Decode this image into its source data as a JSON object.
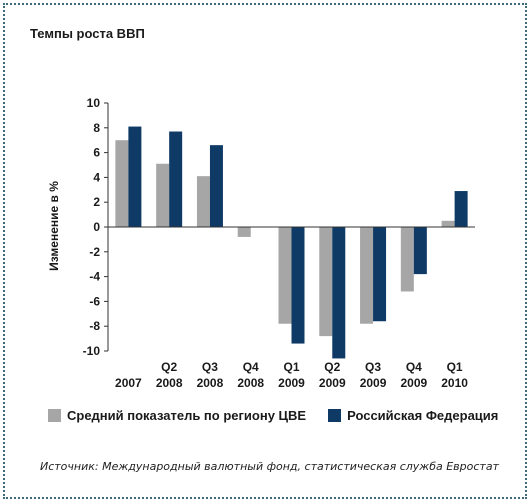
{
  "chart_data": {
    "type": "bar",
    "title": "Темпы роста ВВП",
    "ylabel": "Изменение в %",
    "xlabel": "",
    "ylim": [
      -10,
      10
    ],
    "yticks": [
      10,
      8,
      6,
      4,
      2,
      0,
      -2,
      -4,
      -6,
      -8,
      -10
    ],
    "categories": [
      {
        "q": "",
        "y": "2007"
      },
      {
        "q": "Q2",
        "y": "2008"
      },
      {
        "q": "Q3",
        "y": "2008"
      },
      {
        "q": "Q4",
        "y": "2008"
      },
      {
        "q": "Q1",
        "y": "2009"
      },
      {
        "q": "Q2",
        "y": "2009"
      },
      {
        "q": "Q3",
        "y": "2009"
      },
      {
        "q": "Q4",
        "y": "2009"
      },
      {
        "q": "Q1",
        "y": "2010"
      }
    ],
    "series": [
      {
        "name": "Средний показатель по региону ЦВЕ",
        "color": "#a6a6a6",
        "values": [
          7.0,
          5.1,
          4.1,
          -0.8,
          -7.8,
          -8.8,
          -7.8,
          -5.2,
          0.5
        ]
      },
      {
        "name": "Российская Федерация",
        "color": "#0f3a66",
        "values": [
          8.1,
          7.7,
          6.6,
          0.0,
          -9.4,
          -10.6,
          -7.6,
          -3.8,
          2.9
        ]
      }
    ],
    "grid": false,
    "legend_position": "bottom"
  },
  "source": "Источник: Международный валютный фонд, статистическая служба Евростат"
}
